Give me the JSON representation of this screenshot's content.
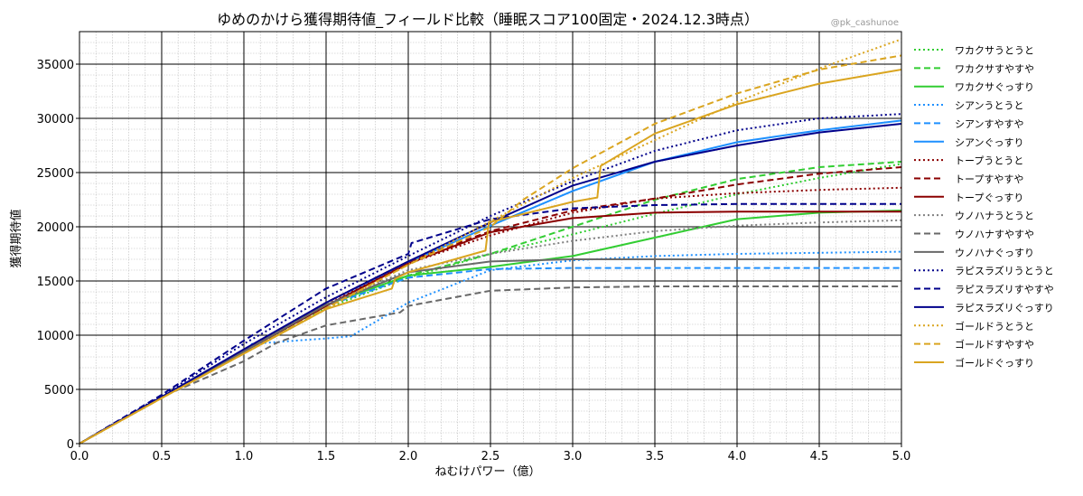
{
  "chart_data": {
    "type": "line",
    "title": "ゆめのかけら獲得期待値_フィールド比較（睡眠スコア100固定・2024.12.3時点）",
    "watermark": "@pk_cashunoe",
    "xlabel": "ねむけパワー（億）",
    "ylabel": "獲得期待値",
    "xlim": [
      0,
      5
    ],
    "ylim": [
      0,
      38000
    ],
    "xticks": [
      0,
      0.5,
      1,
      1.5,
      2,
      2.5,
      3,
      3.5,
      4,
      4.5,
      5
    ],
    "xtick_labels": [
      "0.0",
      "0.5",
      "1.0",
      "1.5",
      "2.0",
      "2.5",
      "3.0",
      "3.5",
      "4.0",
      "4.5",
      "5.0"
    ],
    "yticks": [
      0,
      5000,
      10000,
      15000,
      20000,
      25000,
      30000,
      35000
    ],
    "ytick_labels": [
      "0",
      "5000",
      "10000",
      "15000",
      "20000",
      "25000",
      "30000",
      "35000"
    ],
    "grid": "major and minor",
    "legend_position": "right",
    "series": [
      {
        "name": "ワカクサうとうと",
        "color": "#32cd32",
        "style": "dotted",
        "x": [
          0,
          0.5,
          1.0,
          1.5,
          2.0,
          2.5,
          3.0,
          3.5,
          4.0,
          4.5,
          5.0
        ],
        "y": [
          0,
          4300,
          8500,
          12500,
          15300,
          17500,
          19300,
          21200,
          23000,
          24500,
          25800
        ]
      },
      {
        "name": "ワカクサすやすや",
        "color": "#32cd32",
        "style": "dashed",
        "x": [
          0,
          0.5,
          1.0,
          1.5,
          2.0,
          2.5,
          3.0,
          3.5,
          4.0,
          4.5,
          5.0
        ],
        "y": [
          0,
          4300,
          8500,
          12700,
          15500,
          17500,
          20000,
          22500,
          24400,
          25500,
          26000
        ]
      },
      {
        "name": "ワカクサぐっすり",
        "color": "#32cd32",
        "style": "solid",
        "x": [
          0,
          0.5,
          1.0,
          1.5,
          2.0,
          2.5,
          3.0,
          3.5,
          4.0,
          4.5,
          5.0
        ],
        "y": [
          0,
          4300,
          8500,
          12800,
          15500,
          16300,
          17300,
          19000,
          20700,
          21300,
          21500
        ]
      },
      {
        "name": "シアンうとうと",
        "color": "#1e90ff",
        "style": "dotted",
        "x": [
          0,
          0.5,
          1.0,
          1.05,
          1.5,
          1.65,
          2.0,
          2.5,
          3.0,
          3.5,
          4.0,
          4.5,
          5.0
        ],
        "y": [
          0,
          4300,
          8400,
          9200,
          9700,
          9900,
          13000,
          16000,
          16900,
          17300,
          17500,
          17600,
          17700
        ]
      },
      {
        "name": "シアンすやすや",
        "color": "#1e90ff",
        "style": "dashed",
        "x": [
          0,
          0.5,
          1.0,
          1.5,
          2.0,
          2.5,
          3.0,
          3.5,
          4.0,
          4.5,
          5.0
        ],
        "y": [
          0,
          4300,
          8500,
          12700,
          15300,
          16100,
          16200,
          16200,
          16200,
          16200,
          16200
        ]
      },
      {
        "name": "シアンぐっすり",
        "color": "#1e90ff",
        "style": "solid",
        "x": [
          0,
          0.5,
          1.0,
          1.5,
          2.0,
          2.5,
          3.0,
          3.5,
          4.0,
          4.5,
          5.0
        ],
        "y": [
          0,
          4300,
          8500,
          12700,
          16700,
          20100,
          23300,
          26000,
          27800,
          28900,
          29800
        ]
      },
      {
        "name": "トープうとうと",
        "color": "#8b0000",
        "style": "dotted",
        "x": [
          0,
          0.5,
          1.0,
          1.5,
          2.0,
          2.5,
          3.0,
          3.5,
          4.0,
          4.5,
          5.0
        ],
        "y": [
          0,
          4300,
          8500,
          12800,
          16600,
          19200,
          21300,
          22600,
          23100,
          23400,
          23600
        ]
      },
      {
        "name": "トープすやすや",
        "color": "#8b0000",
        "style": "dashed",
        "x": [
          0,
          0.5,
          1.0,
          1.5,
          2.0,
          2.5,
          3.0,
          3.5,
          4.0,
          4.5,
          5.0
        ],
        "y": [
          0,
          4300,
          8600,
          13000,
          16800,
          19600,
          21500,
          22600,
          23900,
          24900,
          25500
        ]
      },
      {
        "name": "トープぐっすり",
        "color": "#8b0000",
        "style": "solid",
        "x": [
          0,
          0.5,
          1.0,
          1.5,
          2.0,
          2.5,
          3.0,
          3.5,
          4.0,
          4.5,
          5.0
        ],
        "y": [
          0,
          4300,
          8500,
          12700,
          16600,
          19500,
          20800,
          21300,
          21400,
          21400,
          21400
        ]
      },
      {
        "name": "ウノハナうとうと",
        "color": "#808080",
        "style": "dotted",
        "x": [
          0,
          0.5,
          1.0,
          1.5,
          2.0,
          2.5,
          3.0,
          3.5,
          4.0,
          4.5,
          5.0
        ],
        "y": [
          0,
          4300,
          8600,
          12800,
          16000,
          17500,
          18700,
          19600,
          20100,
          20400,
          20600
        ]
      },
      {
        "name": "ウノハナすやすや",
        "color": "#696969",
        "style": "dashed",
        "x": [
          0,
          0.5,
          1.0,
          1.2,
          1.5,
          1.95,
          2.0,
          2.5,
          3.0,
          3.5,
          4.0,
          4.5,
          5.0
        ],
        "y": [
          0,
          4300,
          7600,
          9300,
          10900,
          12100,
          12700,
          14100,
          14400,
          14500,
          14500,
          14500,
          14500
        ]
      },
      {
        "name": "ウノハナぐっすり",
        "color": "#696969",
        "style": "solid",
        "x": [
          0,
          0.5,
          1.0,
          1.5,
          2.0,
          2.5,
          3.0,
          3.5,
          4.0,
          4.5,
          5.0
        ],
        "y": [
          0,
          4300,
          8500,
          12800,
          15800,
          16800,
          17000,
          17000,
          17000,
          17000,
          17000
        ]
      },
      {
        "name": "ラピスラズリうとうと",
        "color": "#00008b",
        "style": "dotted",
        "x": [
          0,
          0.5,
          1.0,
          1.5,
          2.0,
          2.5,
          3.0,
          3.5,
          4.0,
          4.5,
          5.0
        ],
        "y": [
          0,
          4400,
          9200,
          13500,
          17300,
          21000,
          24200,
          27000,
          28900,
          30000,
          30400
        ]
      },
      {
        "name": "ラピスラズリすやすや",
        "color": "#00008b",
        "style": "dashed",
        "x": [
          0,
          0.5,
          1.0,
          1.5,
          2.0,
          2.02,
          2.5,
          3.0,
          3.5,
          4.0,
          4.5,
          5.0
        ],
        "y": [
          0,
          4500,
          9500,
          14300,
          17500,
          18500,
          20700,
          21700,
          22000,
          22100,
          22100,
          22100
        ]
      },
      {
        "name": "ラピスラズリぐっすり",
        "color": "#00008b",
        "style": "solid",
        "x": [
          0,
          0.5,
          1.0,
          1.5,
          2.0,
          2.5,
          3.0,
          3.5,
          4.0,
          4.5,
          5.0
        ],
        "y": [
          0,
          4300,
          8700,
          13000,
          16800,
          20400,
          23800,
          26000,
          27500,
          28700,
          29500
        ]
      },
      {
        "name": "ゴールドうとうと",
        "color": "#daa520",
        "style": "dotted",
        "x": [
          0,
          0.5,
          1.0,
          1.5,
          2.0,
          2.5,
          3.0,
          3.5,
          4.0,
          4.5,
          5.0
        ],
        "y": [
          0,
          4200,
          8300,
          12400,
          16500,
          20500,
          24500,
          28000,
          31500,
          34600,
          37300
        ]
      },
      {
        "name": "ゴールドすやすや",
        "color": "#daa520",
        "style": "dashed",
        "x": [
          0,
          0.5,
          1.0,
          1.5,
          2.0,
          2.5,
          2.7,
          3.0,
          3.5,
          4.0,
          4.5,
          5.0
        ],
        "y": [
          0,
          4200,
          8300,
          12500,
          16500,
          20000,
          22500,
          25400,
          29500,
          32300,
          34500,
          35800
        ]
      },
      {
        "name": "ゴールドぐっすり",
        "color": "#daa520",
        "style": "solid",
        "x": [
          0,
          0.5,
          1.0,
          1.5,
          1.9,
          1.92,
          2.0,
          2.47,
          2.49,
          3.0,
          3.15,
          3.17,
          3.5,
          4.0,
          4.5,
          5.0
        ],
        "y": [
          0,
          4200,
          8300,
          12400,
          14300,
          15200,
          15800,
          17800,
          20400,
          22300,
          22700,
          25600,
          28600,
          31300,
          33200,
          34500
        ]
      }
    ]
  }
}
